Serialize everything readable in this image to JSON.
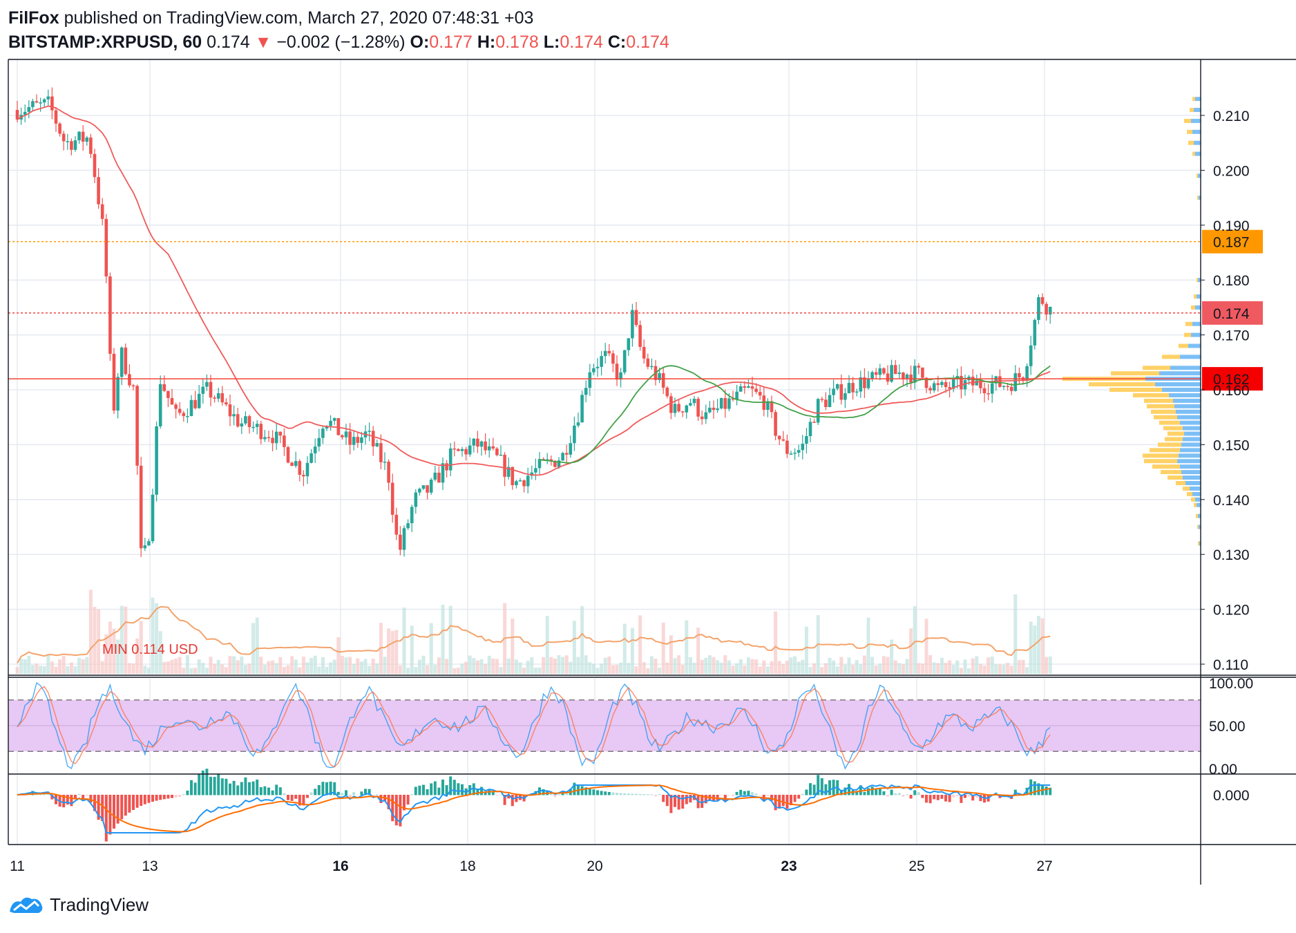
{
  "header": {
    "author": "FilFox",
    "published_text": "published on TradingView.com, March 27, 2020 07:48:31 +03",
    "symbol": "BITSTAMP:XRPUSD, 60",
    "last": "0.174",
    "arrow": "▼",
    "change": "−0.002 (−1.28%)",
    "o_label": "O:",
    "o": "0.177",
    "h_label": "H:",
    "h": "0.178",
    "l_label": "L:",
    "l": "0.174",
    "c_label": "C:",
    "c": "0.174"
  },
  "footer": {
    "brand": "TradingView"
  },
  "colors": {
    "up": "#26a69a",
    "down": "#ef5350",
    "orange": "#ff9800",
    "red_line": "#f44336",
    "ma_red": "#f05a5a",
    "ma_green": "#43a047",
    "vp_blue": "#2196f3",
    "vp_yellow": "#ffc107",
    "stoch_band": "#e1bee7",
    "stoch_k": "#2196f3",
    "stoch_d": "#ff7043",
    "grid": "#e5eaf0"
  },
  "chart_data": {
    "type": "line",
    "title": "BITSTAMP:XRPUSD, 60",
    "ylim": [
      0.108,
      0.2155
    ],
    "y_ticks": [
      "0.210",
      "0.200",
      "0.190",
      "0.180",
      "0.170",
      "0.160",
      "0.150",
      "0.140",
      "0.130",
      "0.120",
      "0.110"
    ],
    "x_ticks": [
      {
        "label": "11",
        "bold": false
      },
      {
        "label": "13",
        "bold": false
      },
      {
        "label": "16",
        "bold": true
      },
      {
        "label": "18",
        "bold": false
      },
      {
        "label": "20",
        "bold": false
      },
      {
        "label": "23",
        "bold": true
      },
      {
        "label": "25",
        "bold": false
      },
      {
        "label": "27",
        "bold": false
      }
    ],
    "price_path": [
      {
        "x": "11 00:00",
        "y": 0.211
      },
      {
        "x": "11 12:00",
        "y": 0.212
      },
      {
        "x": "11 18:00",
        "y": 0.205
      },
      {
        "x": "12 03:00",
        "y": 0.206
      },
      {
        "x": "12 06:00",
        "y": 0.197
      },
      {
        "x": "12 09:00",
        "y": 0.187
      },
      {
        "x": "12 12:00",
        "y": 0.155
      },
      {
        "x": "12 15:00",
        "y": 0.167
      },
      {
        "x": "12 20:00",
        "y": 0.16
      },
      {
        "x": "12 23:00",
        "y": 0.127
      },
      {
        "x": "13 02:00",
        "y": 0.135
      },
      {
        "x": "13 06:00",
        "y": 0.162
      },
      {
        "x": "13 12:00",
        "y": 0.155
      },
      {
        "x": "14 00:00",
        "y": 0.16
      },
      {
        "x": "14 12:00",
        "y": 0.154
      },
      {
        "x": "15 00:00",
        "y": 0.152
      },
      {
        "x": "15 12:00",
        "y": 0.145
      },
      {
        "x": "15 20:00",
        "y": 0.155
      },
      {
        "x": "16 06:00",
        "y": 0.15
      },
      {
        "x": "16 12:00",
        "y": 0.152
      },
      {
        "x": "16 20:00",
        "y": 0.145
      },
      {
        "x": "17 00:00",
        "y": 0.13
      },
      {
        "x": "17 06:00",
        "y": 0.14
      },
      {
        "x": "17 12:00",
        "y": 0.142
      },
      {
        "x": "17 20:00",
        "y": 0.148
      },
      {
        "x": "18 06:00",
        "y": 0.15
      },
      {
        "x": "18 14:00",
        "y": 0.147
      },
      {
        "x": "18 20:00",
        "y": 0.143
      },
      {
        "x": "19 06:00",
        "y": 0.146
      },
      {
        "x": "19 14:00",
        "y": 0.148
      },
      {
        "x": "19 20:00",
        "y": 0.156
      },
      {
        "x": "20 00:00",
        "y": 0.164
      },
      {
        "x": "20 06:00",
        "y": 0.166
      },
      {
        "x": "20 12:00",
        "y": 0.162
      },
      {
        "x": "20 16:00",
        "y": 0.174
      },
      {
        "x": "20 20:00",
        "y": 0.166
      },
      {
        "x": "21 02:00",
        "y": 0.162
      },
      {
        "x": "21 08:00",
        "y": 0.156
      },
      {
        "x": "21 14:00",
        "y": 0.158
      },
      {
        "x": "21 20:00",
        "y": 0.155
      },
      {
        "x": "22 06:00",
        "y": 0.158
      },
      {
        "x": "22 12:00",
        "y": 0.16
      },
      {
        "x": "22 18:00",
        "y": 0.158
      },
      {
        "x": "22 22:00",
        "y": 0.153
      },
      {
        "x": "23 02:00",
        "y": 0.149
      },
      {
        "x": "23 08:00",
        "y": 0.149
      },
      {
        "x": "23 14:00",
        "y": 0.157
      },
      {
        "x": "23 20:00",
        "y": 0.159
      },
      {
        "x": "24 04:00",
        "y": 0.161
      },
      {
        "x": "24 12:00",
        "y": 0.162
      },
      {
        "x": "24 20:00",
        "y": 0.163
      },
      {
        "x": "25 04:00",
        "y": 0.163
      },
      {
        "x": "25 12:00",
        "y": 0.16
      },
      {
        "x": "25 20:00",
        "y": 0.161
      },
      {
        "x": "26 06:00",
        "y": 0.161
      },
      {
        "x": "26 14:00",
        "y": 0.161
      },
      {
        "x": "26 20:00",
        "y": 0.163
      },
      {
        "x": "27 00:00",
        "y": 0.172
      },
      {
        "x": "27 02:00",
        "y": 0.177
      },
      {
        "x": "27 07:00",
        "y": 0.174
      }
    ],
    "price_labels": [
      {
        "value": "0.187",
        "kind": "orange",
        "style": "dotted"
      },
      {
        "value": "0.174",
        "kind": "last",
        "style": "dotted"
      },
      {
        "value": "0.162",
        "kind": "red",
        "style": "solid"
      }
    ],
    "annotation": "MIN 0.114 USD",
    "stoch": {
      "ticks": [
        "100.00",
        "50.00",
        "0.00"
      ],
      "upper": 80,
      "lower": 20
    },
    "macd": {
      "ticks": [
        "0.000"
      ]
    }
  }
}
